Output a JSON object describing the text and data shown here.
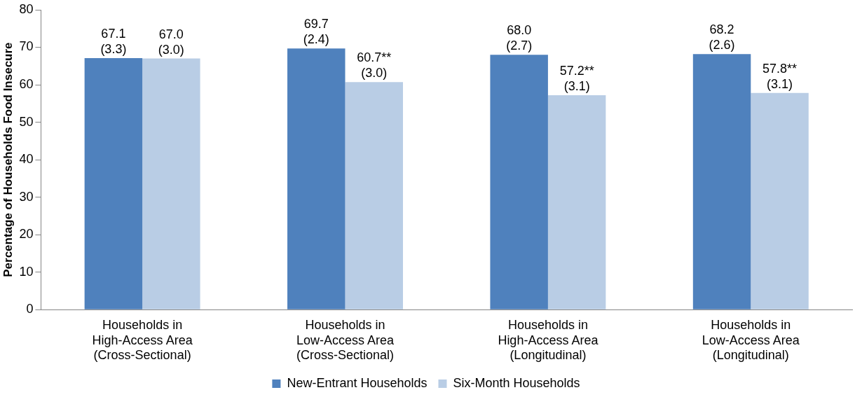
{
  "chart_data": {
    "type": "bar",
    "ylabel": "Percentage of Households Food Insecure",
    "categories": [
      "Households in\nHigh-Access Area\n(Cross-Sectional)",
      "Households in\nLow-Access Area\n(Cross-Sectional)",
      "Households in\nHigh-Access Area\n(Longitudinal)",
      "Households in\nLow-Access Area\n(Longitudinal)"
    ],
    "series": [
      {
        "name": "New-Entrant Households",
        "color": "#4f81bd",
        "values": [
          67.1,
          69.7,
          68.0,
          68.2
        ],
        "value_labels": [
          "67.1\n(3.3)",
          "69.7\n(2.4)",
          "68.0\n(2.7)",
          "68.2\n(2.6)"
        ]
      },
      {
        "name": "Six-Month Households",
        "color": "#b9cde5",
        "values": [
          67.0,
          60.7,
          57.2,
          57.8
        ],
        "value_labels": [
          "67.0\n(3.0)",
          "60.7**\n(3.0)",
          "57.2**\n(3.1)",
          "57.8**\n(3.1)"
        ]
      }
    ],
    "ylim": [
      0,
      80
    ],
    "yticks": [
      0,
      10,
      20,
      30,
      40,
      50,
      60,
      70,
      80
    ],
    "grid": false,
    "legend": "bottom"
  }
}
